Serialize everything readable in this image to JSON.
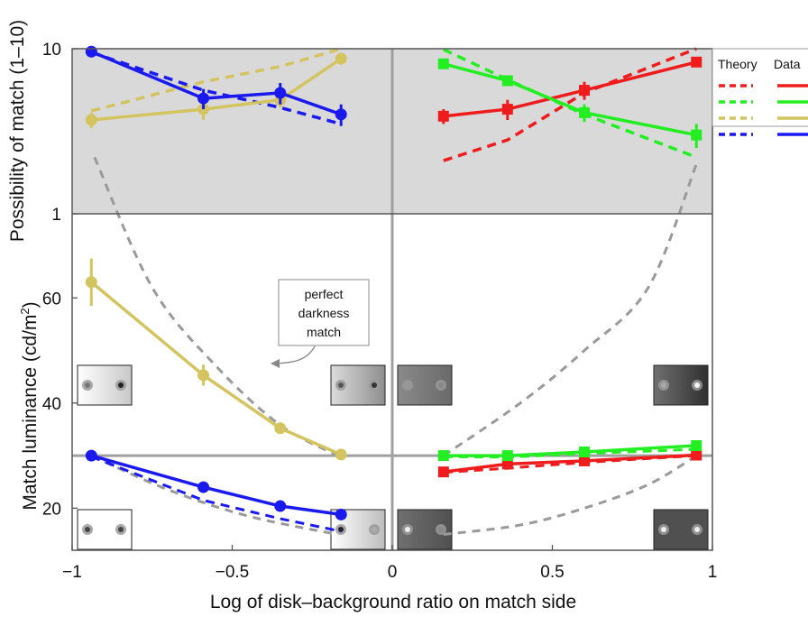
{
  "chart_data": {
    "type": "line",
    "xlabel": "Log of disk–background ratio on match side",
    "xlim": [
      -1,
      1
    ],
    "xticks": [
      -1,
      -0.5,
      0,
      0.5,
      1
    ],
    "xtick_labels": [
      "−1",
      "−0.5",
      "0",
      "0.5",
      "1"
    ],
    "top_panel": {
      "ylabel": "Possibility of match (1–10)",
      "ylim": [
        1,
        10
      ],
      "yticks": [
        1,
        10
      ],
      "ytick_labels": [
        "1",
        "10"
      ],
      "shaded": true
    },
    "bottom_panel": {
      "ylabel_parts": [
        "Match luminance (cd/m",
        "2",
        ")"
      ],
      "ylim": [
        12,
        76
      ],
      "yticks": [
        20,
        40,
        60
      ],
      "ytick_labels": [
        "20",
        "40",
        "60"
      ],
      "reference_luminance": 30
    },
    "legend": {
      "theory_label": "Theory",
      "data_label": "Data",
      "placement": "top-right"
    },
    "series": [
      {
        "color": "#ee1c1c",
        "marker": "square",
        "side": "right",
        "x": [
          0.16,
          0.36,
          0.6,
          0.95
        ],
        "possibility": [
          3.9,
          4.3,
          5.6,
          8.3
        ],
        "possibility_err": [
          0.4,
          0.6,
          0.7,
          0.3
        ],
        "theory_possibility": [
          2.1,
          2.8,
          5.4,
          10.0
        ],
        "luminance": [
          26.9,
          28.4,
          29.0,
          30.1
        ],
        "luminance_err": [
          0.7,
          0.9,
          0.9,
          0.7
        ],
        "theory_luminance": [
          26.8,
          27.6,
          28.7,
          30.0
        ]
      },
      {
        "color": "#22ee22",
        "marker": "square",
        "side": "right",
        "x": [
          0.16,
          0.36,
          0.6,
          0.95
        ],
        "possibility": [
          8.1,
          6.4,
          4.1,
          3.0
        ],
        "possibility_err": [
          0.3,
          0.3,
          0.5,
          0.5
        ],
        "theory_possibility": [
          9.9,
          6.5,
          4.0,
          2.2
        ],
        "luminance": [
          30.0,
          30.0,
          30.7,
          31.9
        ],
        "luminance_err": [
          0.5,
          0.6,
          0.7,
          0.5
        ],
        "theory_luminance": [
          29.8,
          29.7,
          30.4,
          31.2
        ]
      },
      {
        "color": "#d4c460",
        "marker": "circle",
        "side": "left",
        "x": [
          -0.94,
          -0.59,
          -0.35,
          -0.16
        ],
        "possibility": [
          3.7,
          4.3,
          4.9,
          8.7
        ],
        "possibility_err": [
          0.4,
          0.6,
          0.5,
          0.3
        ],
        "theory_possibility": [
          4.2,
          6.3,
          7.8,
          10.0
        ],
        "luminance": [
          63.0,
          45.3,
          35.2,
          30.2
        ],
        "luminance_err": [
          4.5,
          2.0,
          1.0,
          0.6
        ],
        "theory_luminance": null
      },
      {
        "color": "#1a1aee",
        "marker": "circle",
        "side": "left",
        "x": [
          -0.94,
          -0.59,
          -0.35,
          -0.16
        ],
        "possibility": [
          9.6,
          5.0,
          5.4,
          4.0
        ],
        "possibility_err": [
          0.3,
          0.7,
          0.8,
          0.6
        ],
        "theory_possibility": [
          9.5,
          5.6,
          4.4,
          3.5
        ],
        "luminance": [
          30.0,
          24.0,
          20.4,
          18.8
        ],
        "luminance_err": [
          0.5,
          0.6,
          0.7,
          0.9
        ],
        "theory_luminance": [
          29.8,
          21.5,
          18.0,
          15.6
        ]
      }
    ],
    "perfect_darkness_match": {
      "left_upper": {
        "x": [
          -0.93,
          -0.75,
          -0.55,
          -0.35,
          -0.17
        ],
        "y": [
          2.2,
          62.0,
          47.0,
          35.8,
          30.0
        ]
      },
      "left_lower": {
        "x": [
          -0.94,
          -0.7,
          -0.45,
          -0.17
        ],
        "y": [
          30.0,
          23.5,
          18.5,
          15.0
        ]
      },
      "right_upper": {
        "x": [
          0.16,
          0.4,
          0.6,
          0.8,
          0.95
        ],
        "y": [
          30.0,
          40.0,
          50.0,
          62.0,
          2.0
        ]
      },
      "right_lower": {
        "x": [
          0.16,
          0.4,
          0.6,
          0.8,
          0.95
        ],
        "y": [
          15.0,
          16.8,
          20.0,
          24.5,
          30.0
        ]
      }
    },
    "annotation": {
      "lines": [
        "perfect",
        "darkness",
        "match"
      ]
    }
  }
}
